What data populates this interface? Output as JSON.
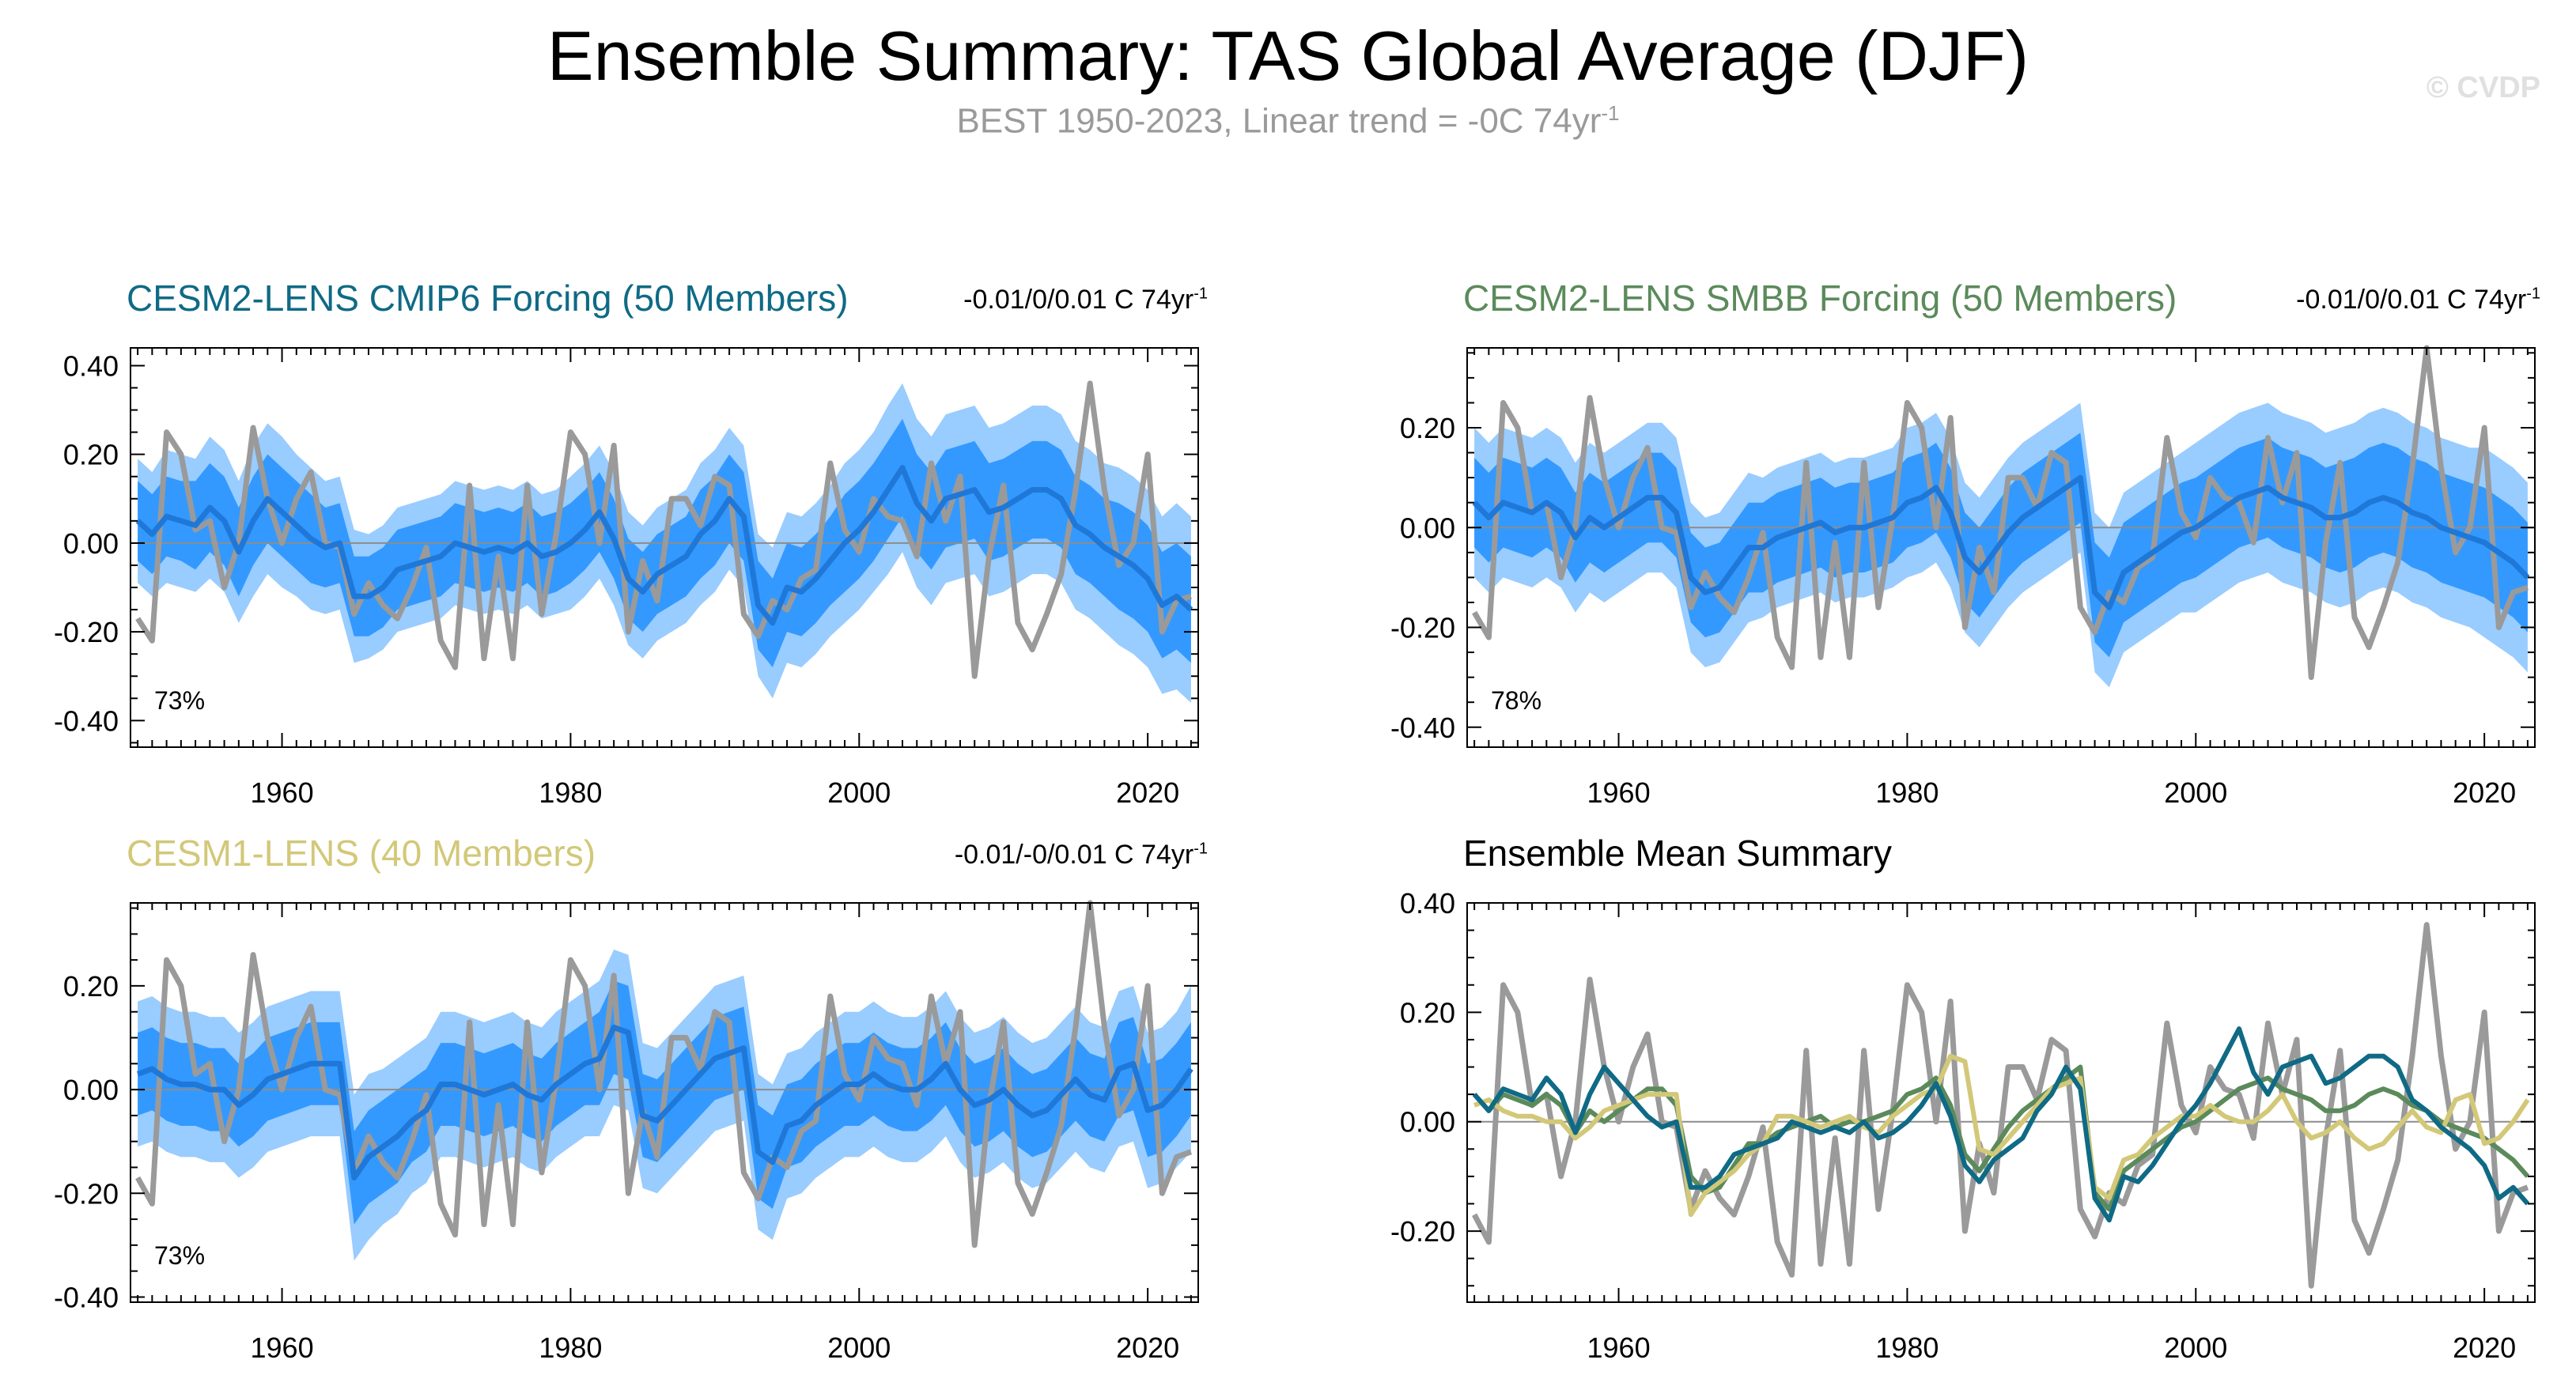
{
  "header": {
    "title": "Ensemble Summary: TAS Global Average (DJF)",
    "subtitle": "BEST 1950-2023, Linear trend = -0C 74yr",
    "subtitle_sup": "-1",
    "copyright": "© CVDP"
  },
  "colors": {
    "obs": "#9a9a9a",
    "band_outer": "#99ccff",
    "band_inner": "#3399ff",
    "mean_line": "#1f78d8",
    "cmip6": "#0f6a85",
    "smbb": "#5b8a5b",
    "cesm1": "#d2c878",
    "zero_line": "#8c8c8c"
  },
  "panels": [
    {
      "id": "cmip6",
      "title": "CESM2-LENS CMIP6 Forcing (50 Members)",
      "title_color": "#0f6a85",
      "trend": "-0.01/0/0.01 C 74yr",
      "trend_sup": "-1",
      "percent": "73%"
    },
    {
      "id": "smbb",
      "title": "CESM2-LENS SMBB Forcing (50 Members)",
      "title_color": "#5b8a5b",
      "trend": "-0.01/0/0.01 C 74yr",
      "trend_sup": "-1",
      "percent": "78%"
    },
    {
      "id": "cesm1",
      "title": "CESM1-LENS (40 Members)",
      "title_color": "#d2c878",
      "trend": "-0.01/-0/0.01 C 74yr",
      "trend_sup": "-1",
      "percent": "73%"
    },
    {
      "id": "summary",
      "title": "Ensemble Mean Summary",
      "title_color": "#000000"
    }
  ],
  "chart_data": {
    "type": "line",
    "x_start": 1950,
    "x_end": 2023,
    "xlim": [
      1949.5,
      2023.5
    ],
    "xticks": [
      1960,
      1980,
      2000,
      2020
    ],
    "ylim_a": [
      -0.46,
      0.44
    ],
    "yticks_a": [
      "0.40",
      "0.20",
      "0.00",
      "-0.20",
      "-0.40"
    ],
    "ylim_b": [
      -0.44,
      0.36
    ],
    "yticks_b": [
      "0.20",
      "0.00",
      "-0.20",
      "-0.40"
    ],
    "ylim_c": [
      -0.41,
      0.36
    ],
    "yticks_c": [
      "0.20",
      "0.00",
      "-0.20",
      "-0.40"
    ],
    "ylim_summary": [
      -0.33,
      0.4
    ],
    "yticks_summary": [
      "0.40",
      "0.20",
      "0.00",
      "-0.20"
    ],
    "observed": [
      -0.17,
      -0.22,
      0.25,
      0.2,
      0.03,
      0.05,
      -0.1,
      0.0,
      0.26,
      0.1,
      0.0,
      0.1,
      0.16,
      0.0,
      -0.01,
      -0.16,
      -0.09,
      -0.14,
      -0.17,
      -0.1,
      -0.01,
      -0.22,
      -0.28,
      0.13,
      -0.26,
      -0.03,
      -0.26,
      0.13,
      -0.16,
      0.02,
      0.25,
      0.2,
      0.0,
      0.22,
      -0.2,
      -0.04,
      -0.13,
      0.1,
      0.1,
      0.04,
      0.15,
      0.13,
      -0.16,
      -0.21,
      -0.13,
      -0.15,
      -0.08,
      -0.06,
      0.18,
      0.03,
      -0.02,
      0.1,
      0.06,
      0.05,
      -0.03,
      0.18,
      0.05,
      0.15,
      -0.3,
      -0.03,
      0.13,
      -0.18,
      -0.24,
      -0.16,
      -0.07,
      0.12,
      0.36,
      0.12,
      -0.05,
      0.0,
      0.2,
      -0.2,
      -0.13,
      -0.12
    ],
    "series": [
      {
        "name": "CESM2-LENS CMIP6 Forcing (50 Members)",
        "mean": [
          0.05,
          0.02,
          0.06,
          0.05,
          0.04,
          0.08,
          0.05,
          -0.02,
          0.05,
          0.1,
          0.07,
          0.04,
          0.01,
          -0.01,
          0.0,
          -0.12,
          -0.12,
          -0.1,
          -0.06,
          -0.05,
          -0.04,
          -0.03,
          0.0,
          -0.01,
          -0.02,
          -0.01,
          -0.02,
          0.0,
          -0.03,
          -0.02,
          0.0,
          0.03,
          0.07,
          0.01,
          -0.08,
          -0.11,
          -0.07,
          -0.05,
          -0.03,
          0.02,
          0.05,
          0.1,
          0.06,
          -0.14,
          -0.18,
          -0.1,
          -0.11,
          -0.08,
          -0.04,
          0.0,
          0.03,
          0.07,
          0.12,
          0.17,
          0.09,
          0.05,
          0.1,
          0.11,
          0.12,
          0.07,
          0.08,
          0.1,
          0.12,
          0.12,
          0.1,
          0.04,
          0.02,
          -0.01,
          -0.03,
          -0.05,
          -0.08,
          -0.14,
          -0.12,
          -0.15
        ]
      },
      {
        "name": "CESM2-LENS SMBB Forcing (50 Members)",
        "mean": [
          0.05,
          0.02,
          0.05,
          0.04,
          0.03,
          0.05,
          0.03,
          -0.02,
          0.02,
          0.0,
          0.02,
          0.04,
          0.06,
          0.06,
          0.03,
          -0.1,
          -0.13,
          -0.12,
          -0.08,
          -0.04,
          -0.04,
          -0.02,
          -0.01,
          0.0,
          0.01,
          -0.01,
          0.0,
          0.0,
          0.01,
          0.02,
          0.05,
          0.06,
          0.08,
          0.03,
          -0.06,
          -0.09,
          -0.05,
          -0.01,
          0.02,
          0.04,
          0.06,
          0.08,
          0.1,
          -0.13,
          -0.16,
          -0.09,
          -0.07,
          -0.05,
          -0.03,
          -0.01,
          0.0,
          0.02,
          0.04,
          0.06,
          0.07,
          0.08,
          0.06,
          0.05,
          0.04,
          0.02,
          0.02,
          0.03,
          0.05,
          0.06,
          0.05,
          0.03,
          0.02,
          0.0,
          -0.01,
          -0.02,
          -0.03,
          -0.05,
          -0.07,
          -0.1
        ]
      },
      {
        "name": "CESM1-LENS (40 Members)",
        "mean": [
          0.03,
          0.04,
          0.02,
          0.01,
          0.01,
          0.0,
          0.0,
          -0.03,
          -0.01,
          0.02,
          0.03,
          0.04,
          0.05,
          0.05,
          0.05,
          -0.17,
          -0.13,
          -0.11,
          -0.09,
          -0.06,
          -0.04,
          0.01,
          0.01,
          0.0,
          -0.01,
          0.0,
          0.01,
          -0.01,
          -0.02,
          0.01,
          0.03,
          0.05,
          0.06,
          0.12,
          0.11,
          -0.05,
          -0.06,
          -0.03,
          0.0,
          0.03,
          0.06,
          0.07,
          0.08,
          -0.12,
          -0.14,
          -0.07,
          -0.06,
          -0.03,
          -0.01,
          0.01,
          0.01,
          0.03,
          0.01,
          0.0,
          0.0,
          0.02,
          0.05,
          0.0,
          -0.03,
          -0.02,
          0.0,
          -0.03,
          -0.05,
          -0.04,
          -0.01,
          0.02,
          -0.01,
          -0.02,
          0.04,
          0.05,
          -0.04,
          -0.03,
          0.0,
          0.04
        ]
      }
    ],
    "bands": [
      {
        "outer_width": [
          0.14,
          0.14,
          0.15,
          0.15,
          0.15,
          0.16,
          0.16,
          0.16,
          0.17,
          0.17,
          0.17,
          0.16,
          0.16,
          0.15,
          0.15,
          0.15,
          0.14,
          0.14,
          0.14,
          0.14,
          0.14,
          0.14,
          0.14,
          0.14,
          0.14,
          0.14,
          0.14,
          0.14,
          0.14,
          0.14,
          0.15,
          0.15,
          0.15,
          0.15,
          0.15,
          0.15,
          0.15,
          0.15,
          0.15,
          0.16,
          0.16,
          0.16,
          0.16,
          0.16,
          0.17,
          0.17,
          0.17,
          0.17,
          0.17,
          0.18,
          0.18,
          0.18,
          0.19,
          0.19,
          0.19,
          0.19,
          0.19,
          0.19,
          0.19,
          0.19,
          0.19,
          0.19,
          0.19,
          0.19,
          0.19,
          0.19,
          0.19,
          0.19,
          0.2,
          0.2,
          0.2,
          0.2,
          0.21,
          0.21
        ],
        "inner_width": [
          0.09,
          0.09,
          0.09,
          0.09,
          0.1,
          0.1,
          0.1,
          0.1,
          0.1,
          0.1,
          0.1,
          0.1,
          0.1,
          0.09,
          0.09,
          0.09,
          0.09,
          0.09,
          0.09,
          0.09,
          0.09,
          0.09,
          0.09,
          0.09,
          0.09,
          0.09,
          0.09,
          0.09,
          0.09,
          0.09,
          0.09,
          0.09,
          0.09,
          0.09,
          0.09,
          0.09,
          0.09,
          0.09,
          0.09,
          0.1,
          0.1,
          0.1,
          0.1,
          0.1,
          0.1,
          0.1,
          0.1,
          0.1,
          0.1,
          0.11,
          0.11,
          0.11,
          0.11,
          0.11,
          0.11,
          0.11,
          0.11,
          0.11,
          0.11,
          0.11,
          0.11,
          0.11,
          0.11,
          0.11,
          0.11,
          0.11,
          0.11,
          0.11,
          0.12,
          0.12,
          0.12,
          0.12,
          0.12,
          0.12
        ]
      },
      {
        "outer_width": [
          0.15,
          0.15,
          0.15,
          0.15,
          0.15,
          0.15,
          0.15,
          0.15,
          0.15,
          0.15,
          0.15,
          0.15,
          0.15,
          0.15,
          0.15,
          0.15,
          0.15,
          0.15,
          0.15,
          0.15,
          0.14,
          0.14,
          0.14,
          0.14,
          0.14,
          0.14,
          0.14,
          0.14,
          0.14,
          0.14,
          0.15,
          0.15,
          0.15,
          0.15,
          0.15,
          0.15,
          0.15,
          0.15,
          0.15,
          0.15,
          0.15,
          0.15,
          0.15,
          0.16,
          0.16,
          0.16,
          0.16,
          0.16,
          0.16,
          0.16,
          0.17,
          0.17,
          0.17,
          0.17,
          0.17,
          0.17,
          0.17,
          0.17,
          0.17,
          0.17,
          0.18,
          0.18,
          0.18,
          0.18,
          0.18,
          0.18,
          0.18,
          0.18,
          0.18,
          0.18,
          0.19,
          0.19,
          0.19,
          0.19
        ],
        "inner_width": [
          0.09,
          0.09,
          0.09,
          0.09,
          0.09,
          0.09,
          0.09,
          0.09,
          0.09,
          0.09,
          0.09,
          0.09,
          0.09,
          0.09,
          0.09,
          0.09,
          0.09,
          0.09,
          0.09,
          0.09,
          0.09,
          0.09,
          0.09,
          0.09,
          0.09,
          0.09,
          0.09,
          0.09,
          0.09,
          0.09,
          0.09,
          0.09,
          0.09,
          0.09,
          0.09,
          0.09,
          0.09,
          0.09,
          0.09,
          0.09,
          0.09,
          0.09,
          0.09,
          0.1,
          0.1,
          0.1,
          0.1,
          0.1,
          0.1,
          0.1,
          0.1,
          0.1,
          0.1,
          0.1,
          0.1,
          0.1,
          0.1,
          0.1,
          0.1,
          0.1,
          0.11,
          0.11,
          0.11,
          0.11,
          0.11,
          0.11,
          0.11,
          0.11,
          0.11,
          0.11,
          0.11,
          0.11,
          0.11,
          0.11
        ]
      },
      {
        "outer_width": [
          0.14,
          0.14,
          0.14,
          0.14,
          0.14,
          0.14,
          0.14,
          0.14,
          0.14,
          0.14,
          0.14,
          0.14,
          0.14,
          0.14,
          0.14,
          0.16,
          0.16,
          0.15,
          0.15,
          0.14,
          0.14,
          0.14,
          0.14,
          0.14,
          0.14,
          0.14,
          0.14,
          0.14,
          0.14,
          0.14,
          0.14,
          0.14,
          0.15,
          0.15,
          0.15,
          0.14,
          0.14,
          0.14,
          0.14,
          0.14,
          0.14,
          0.14,
          0.14,
          0.15,
          0.15,
          0.14,
          0.14,
          0.14,
          0.14,
          0.14,
          0.14,
          0.14,
          0.14,
          0.14,
          0.14,
          0.14,
          0.14,
          0.14,
          0.14,
          0.14,
          0.14,
          0.14,
          0.14,
          0.14,
          0.14,
          0.14,
          0.14,
          0.14,
          0.15,
          0.15,
          0.15,
          0.15,
          0.15,
          0.16
        ],
        "inner_width": [
          0.08,
          0.08,
          0.08,
          0.08,
          0.08,
          0.08,
          0.08,
          0.08,
          0.08,
          0.08,
          0.08,
          0.08,
          0.08,
          0.08,
          0.08,
          0.09,
          0.09,
          0.09,
          0.09,
          0.08,
          0.08,
          0.08,
          0.08,
          0.08,
          0.08,
          0.08,
          0.08,
          0.08,
          0.08,
          0.08,
          0.08,
          0.08,
          0.09,
          0.09,
          0.09,
          0.08,
          0.08,
          0.08,
          0.08,
          0.08,
          0.08,
          0.08,
          0.08,
          0.09,
          0.09,
          0.08,
          0.08,
          0.08,
          0.08,
          0.08,
          0.08,
          0.08,
          0.08,
          0.08,
          0.08,
          0.08,
          0.08,
          0.08,
          0.08,
          0.08,
          0.08,
          0.08,
          0.08,
          0.08,
          0.08,
          0.08,
          0.08,
          0.08,
          0.09,
          0.09,
          0.09,
          0.09,
          0.09,
          0.09
        ]
      }
    ]
  }
}
